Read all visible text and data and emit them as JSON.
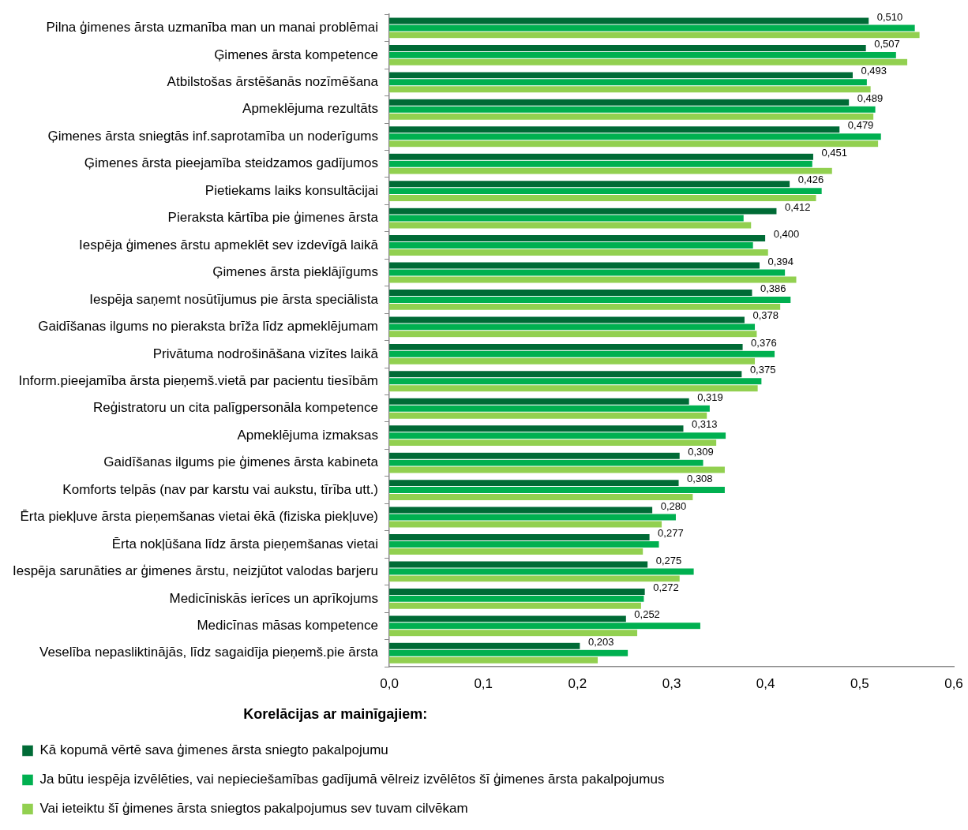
{
  "chart_data": {
    "type": "bar",
    "orientation": "horizontal",
    "categories": [
      "Pilna ģimenes ārsta uzmanība man un manai problēmai",
      "Ģimenes ārsta kompetence",
      "Atbilstošas ārstēšanās nozīmēšana",
      "Apmeklējuma rezultāts",
      "Ģimenes ārsta sniegtās inf.saprotamība un noderīgums",
      "Ģimenes ārsta pieejamība steidzamos gadījumos",
      "Pietiekams laiks konsultācijai",
      "Pieraksta kārtība pie ģimenes ārsta",
      "Iespēja ģimenes ārstu apmeklēt sev izdevīgā laikā",
      "Ģimenes ārsta pieklājīgums",
      "Iespēja saņemt nosūtījumus pie ārsta speciālista",
      "Gaidīšanas ilgums no pieraksta brīža līdz apmeklējumam",
      "Privātuma nodrošināšana vizītes laikā",
      "Inform.pieejamība ārsta pieņemš.vietā par pacientu tiesībām",
      "Reģistratoru un cita palīgpersonāla kompetence",
      "Apmeklējuma izmaksas",
      "Gaidīšanas ilgums pie ģimenes ārsta kabineta",
      "Komforts telpās (nav par karstu vai aukstu, tīrība utt.)",
      "Ērta piekļuve ārsta pieņemšanas vietai ēkā (fiziska piekļuve)",
      "Ērta nokļūšana līdz ārsta pieņemšanas vietai",
      "Iespēja sarunāties ar ģimenes ārstu, neizjūtot valodas barjeru",
      "Medicīniskās ierīces un aprīkojums",
      "Medicīnas māsas kompetence",
      "Veselība nepasliktinājās, līdz sagaidīja pieņemš.pie ārsta"
    ],
    "series": [
      {
        "name": "Kā kopumā vērtē sava ģimenes ārsta sniegto pakalpojumu",
        "color": "#006b36",
        "values": [
          0.51,
          0.507,
          0.493,
          0.489,
          0.479,
          0.451,
          0.426,
          0.412,
          0.4,
          0.394,
          0.386,
          0.378,
          0.376,
          0.375,
          0.319,
          0.313,
          0.309,
          0.308,
          0.28,
          0.277,
          0.275,
          0.272,
          0.252,
          0.203
        ],
        "value_labels": [
          "0,510",
          "0,507",
          "0,493",
          "0,489",
          "0,479",
          "0,451",
          "0,426",
          "0,412",
          "0,400",
          "0,394",
          "0,386",
          "0,378",
          "0,376",
          "0,375",
          "0,319",
          "0,313",
          "0,309",
          "0,308",
          "0,280",
          "0,277",
          "0,275",
          "0,272",
          "0,252",
          "0,203"
        ]
      },
      {
        "name": "Ja būtu iespēja izvēlēties, vai nepieciešamības gadījumā vēlreiz izvēlētos šī ģimenes ārsta pakalpojumus",
        "color": "#00b050",
        "values": [
          0.559,
          0.539,
          0.508,
          0.517,
          0.523,
          0.45,
          0.46,
          0.377,
          0.387,
          0.421,
          0.427,
          0.389,
          0.41,
          0.396,
          0.341,
          0.358,
          0.334,
          0.357,
          0.305,
          0.287,
          0.324,
          0.271,
          0.331,
          0.254
        ]
      },
      {
        "name": "Vai ieteiktu šī ģimenes ārsta sniegtos pakalpojumus sev tuvam cilvēkam",
        "color": "#92d050",
        "values": [
          0.564,
          0.551,
          0.512,
          0.515,
          0.52,
          0.471,
          0.454,
          0.385,
          0.403,
          0.433,
          0.416,
          0.391,
          0.389,
          0.392,
          0.338,
          0.348,
          0.357,
          0.323,
          0.29,
          0.27,
          0.309,
          0.268,
          0.264,
          0.222
        ]
      }
    ],
    "xlim": [
      0,
      0.6
    ],
    "xticks": [
      {
        "value": 0,
        "label": "0,0"
      },
      {
        "value": 0.1,
        "label": "0,1"
      },
      {
        "value": 0.2,
        "label": "0,2"
      },
      {
        "value": 0.3,
        "label": "0,3"
      },
      {
        "value": 0.4,
        "label": "0,4"
      },
      {
        "value": 0.5,
        "label": "0,5"
      },
      {
        "value": 0.6,
        "label": "0,6"
      }
    ],
    "grid": false,
    "legend": "bottom",
    "legend_title": "Korelācijas ar mainīgajiem:"
  }
}
